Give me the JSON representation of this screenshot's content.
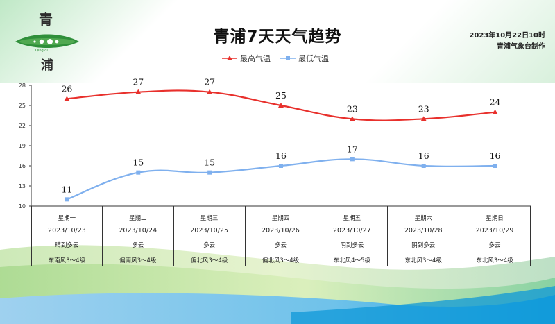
{
  "header": {
    "logo_text_top": "青",
    "logo_text_sub": "QingPu",
    "logo_text_bottom": "浦",
    "title": "青浦7天天气趋势",
    "issue_time": "2023年10月22日10时",
    "issuer": "青浦气象台制作"
  },
  "colors": {
    "high": "#e8302c",
    "low": "#7fb0ee",
    "axis": "#333333",
    "logo_green": "#2f8f3a"
  },
  "chart_data": {
    "type": "line",
    "title": "青浦7天天气趋势",
    "ylim": [
      10,
      28
    ],
    "yticks": [
      10,
      13,
      16,
      19,
      22,
      25,
      28
    ],
    "legend_position": "top-center",
    "grid": false,
    "categories": [
      "星期一",
      "星期二",
      "星期三",
      "星期四",
      "星期五",
      "星期六",
      "星期日"
    ],
    "series": [
      {
        "name": "最高气温",
        "marker": "triangle",
        "values": [
          26,
          27,
          27,
          25,
          23,
          23,
          24
        ]
      },
      {
        "name": "最低气温",
        "marker": "square",
        "values": [
          11,
          15,
          15,
          16,
          17,
          16,
          16
        ]
      }
    ]
  },
  "table": {
    "days": [
      {
        "day": "星期一",
        "date": "2023/10/23",
        "weather": "晴到多云",
        "wind": "东南风3～4级"
      },
      {
        "day": "星期二",
        "date": "2023/10/24",
        "weather": "多云",
        "wind": "偏南风3～4级"
      },
      {
        "day": "星期三",
        "date": "2023/10/25",
        "weather": "多云",
        "wind": "偏北风3～4级"
      },
      {
        "day": "星期四",
        "date": "2023/10/26",
        "weather": "多云",
        "wind": "偏北风3～4级"
      },
      {
        "day": "星期五",
        "date": "2023/10/27",
        "weather": "阴到多云",
        "wind": "东北风4～5级"
      },
      {
        "day": "星期六",
        "date": "2023/10/28",
        "weather": "阴到多云",
        "wind": "东北风3～4级"
      },
      {
        "day": "星期日",
        "date": "2023/10/29",
        "weather": "多云",
        "wind": "东北风3～4级"
      }
    ]
  }
}
